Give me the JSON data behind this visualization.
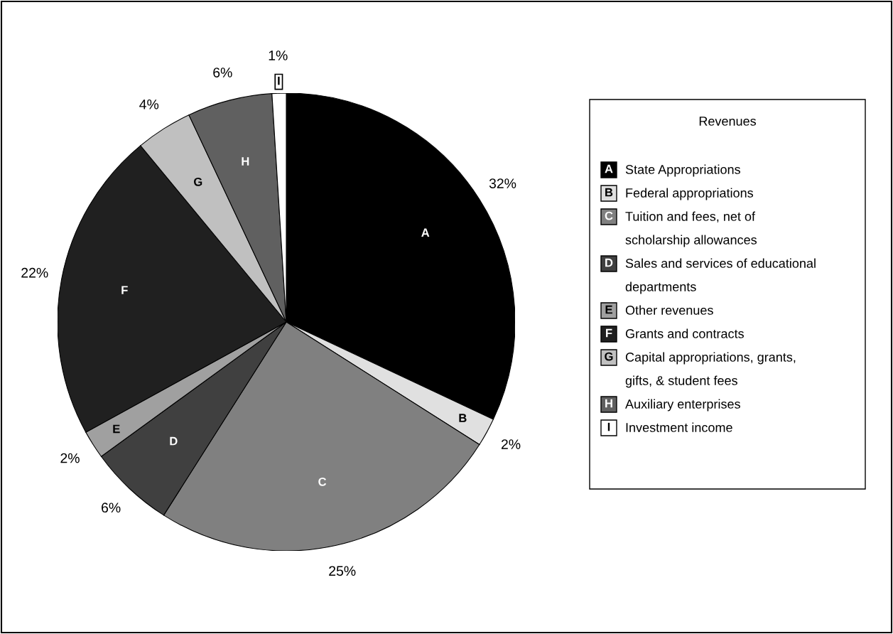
{
  "chart_data": {
    "type": "pie",
    "legend_title": "Revenues",
    "legend": "right",
    "categories": [
      "State Appropriations",
      "Federal appropriations",
      "Tuition and fees, net of\nscholarship allowances",
      "Sales and services of educational\ndepartments",
      "Other revenues",
      "Grants and contracts",
      "Capital appropriations, grants,\ngifts, & student fees",
      "Auxiliary enterprises",
      "Investment income"
    ],
    "values": [
      32,
      2,
      25,
      6,
      2,
      22,
      4,
      6,
      1
    ],
    "value_labels": [
      "32%",
      "2%",
      "25%",
      "6%",
      "2%",
      "22%",
      "4%",
      "6%",
      "1%"
    ],
    "colors": [
      "#000000",
      "#e0e0e0",
      "#808080",
      "#404040",
      "#a0a0a0",
      "#202020",
      "#c0c0c0",
      "#606060",
      "#ffffff"
    ],
    "annotations": [
      "A",
      "B",
      "C",
      "D",
      "E",
      "F",
      "G",
      "H",
      "I"
    ]
  }
}
